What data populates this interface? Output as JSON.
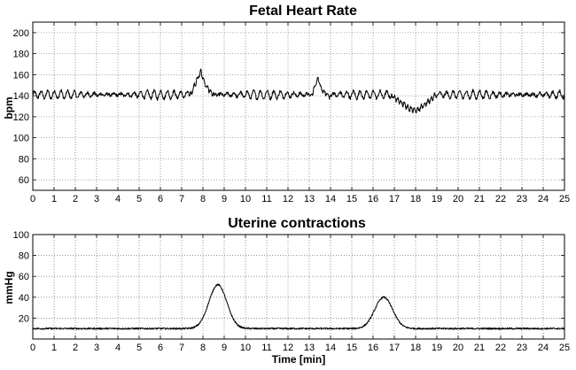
{
  "chart_data": [
    {
      "type": "line",
      "title": "Fetal Heart Rate",
      "xlabel": "",
      "ylabel": "bpm",
      "xlim": [
        0,
        25
      ],
      "ylim": [
        50,
        210
      ],
      "xticks": [
        0,
        1,
        2,
        3,
        4,
        5,
        6,
        7,
        8,
        9,
        10,
        11,
        12,
        13,
        14,
        15,
        16,
        17,
        18,
        19,
        20,
        21,
        22,
        23,
        24,
        25
      ],
      "yticks": [
        60,
        80,
        100,
        120,
        140,
        160,
        180,
        200
      ],
      "grid": true,
      "baseline": 141,
      "fluctuation": 4,
      "events": [
        {
          "x": [
            7.4,
            7.9,
            8.1,
            8.5
          ],
          "y": [
            140,
            164,
            150,
            141
          ]
        },
        {
          "x": [
            13.1,
            13.4,
            13.6,
            14.0
          ],
          "y": [
            140,
            157,
            145,
            139
          ]
        },
        {
          "x": [
            16.9,
            17.7,
            18.1,
            18.9
          ],
          "y": [
            140,
            128,
            126,
            140
          ]
        }
      ]
    },
    {
      "type": "line",
      "title": "Uterine contractions",
      "xlabel": "Time [min]",
      "ylabel": "mmHg",
      "xlim": [
        0,
        25
      ],
      "ylim": [
        0,
        100
      ],
      "xticks": [
        0,
        1,
        2,
        3,
        4,
        5,
        6,
        7,
        8,
        9,
        10,
        11,
        12,
        13,
        14,
        15,
        16,
        17,
        18,
        19,
        20,
        21,
        22,
        23,
        24,
        25
      ],
      "yticks": [
        20,
        40,
        60,
        80,
        100
      ],
      "grid": true,
      "baseline": 10,
      "fluctuation": 0.8,
      "peaks": [
        {
          "x": 8.7,
          "y": 52
        },
        {
          "x": 16.5,
          "y": 40
        }
      ]
    }
  ]
}
